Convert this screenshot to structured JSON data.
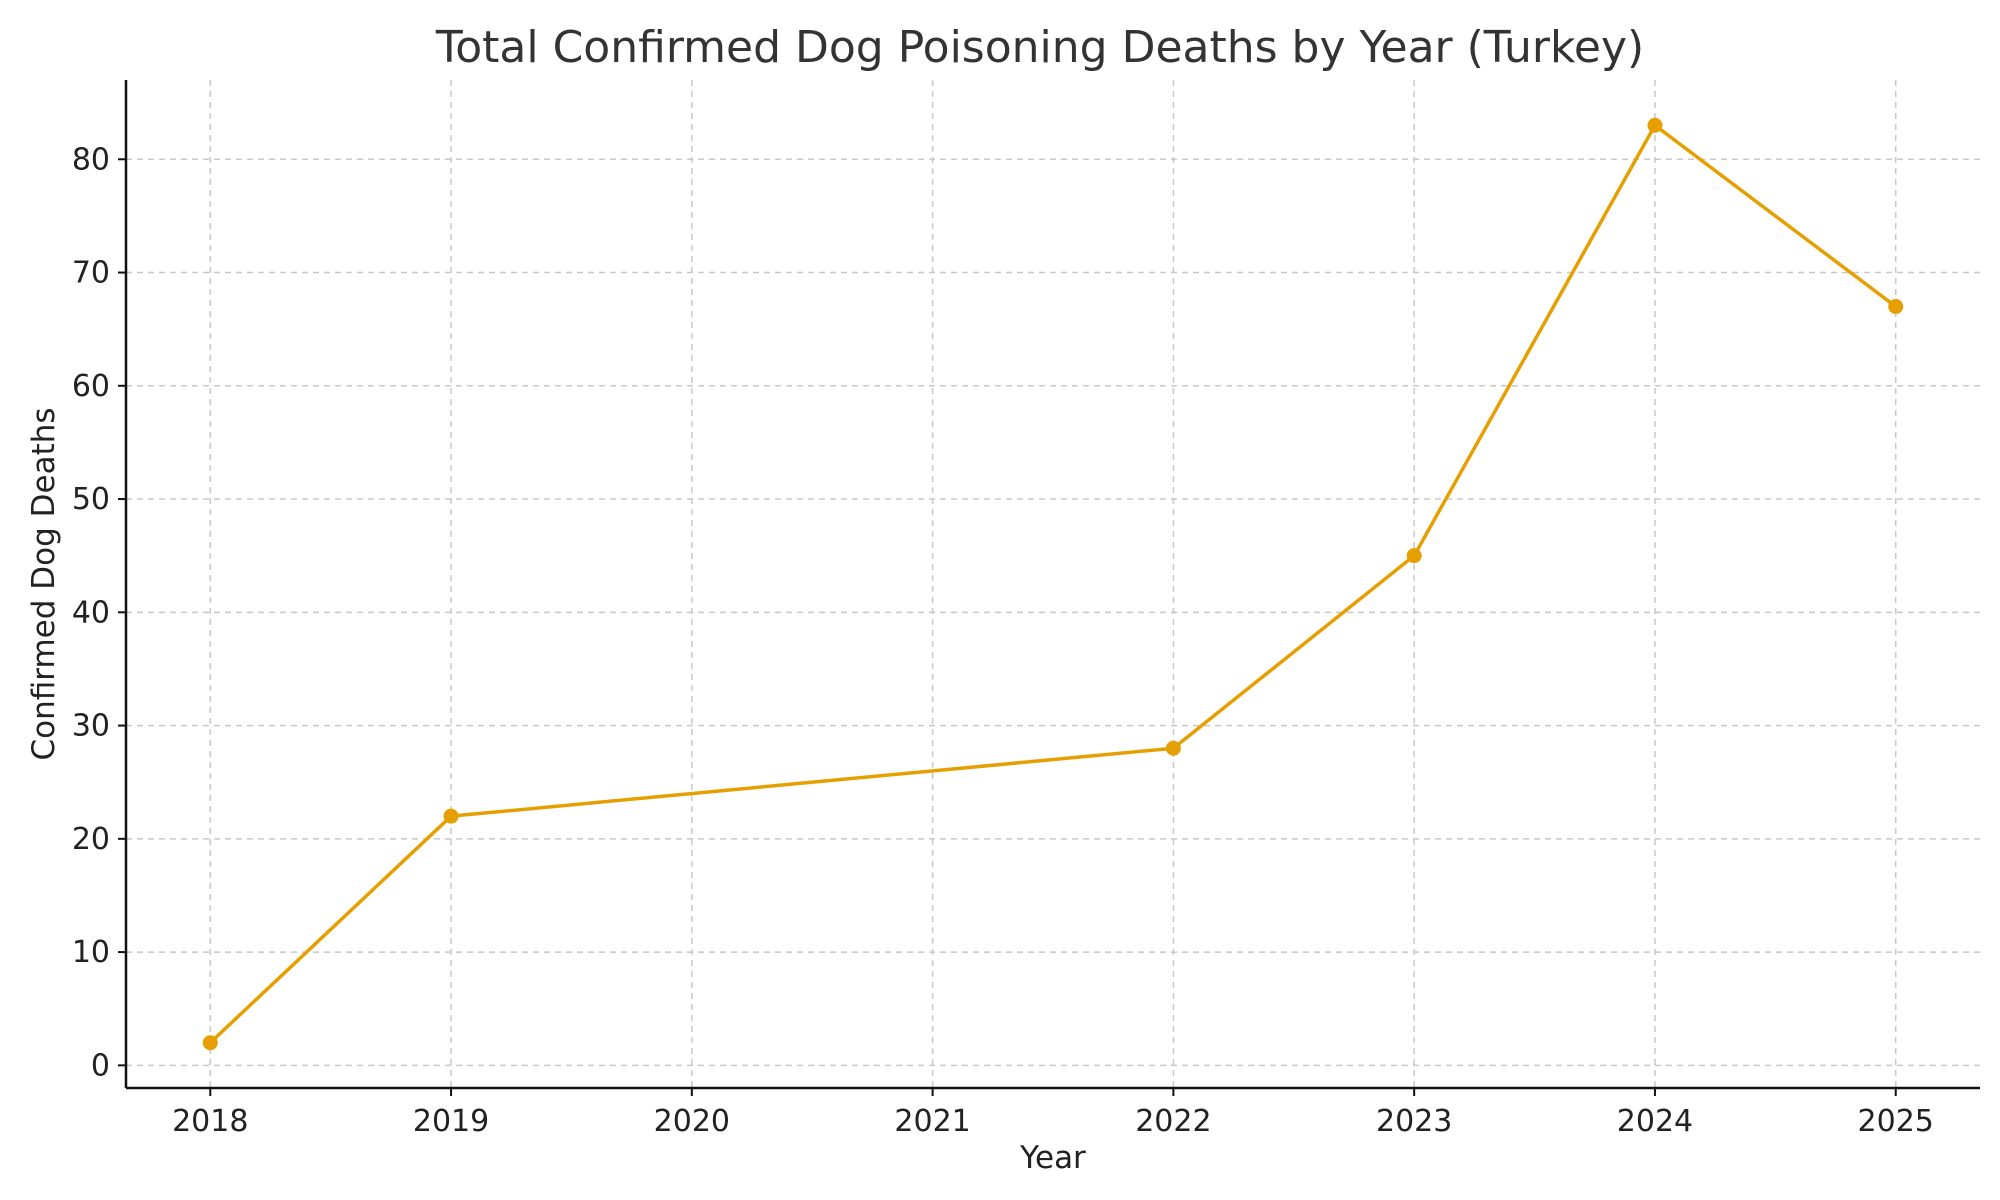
{
  "chart_data": {
    "type": "line",
    "title": "Total Confirmed Dog Poisoning Deaths by Year (Turkey)",
    "xlabel": "Year",
    "ylabel": "Confirmed Dog Deaths",
    "x": [
      2018,
      2019,
      2022,
      2023,
      2024,
      2025
    ],
    "series": [
      {
        "values": [
          2,
          22,
          28,
          45,
          83,
          67
        ],
        "color": "#E69F00"
      }
    ],
    "xticks": [
      2018,
      2019,
      2020,
      2021,
      2022,
      2023,
      2024,
      2025
    ],
    "yticks": [
      0,
      10,
      20,
      30,
      40,
      50,
      60,
      70,
      80
    ],
    "xlim": [
      2017.65,
      2025.35
    ],
    "ylim": [
      -2,
      87
    ],
    "grid": true,
    "legend": "none"
  }
}
